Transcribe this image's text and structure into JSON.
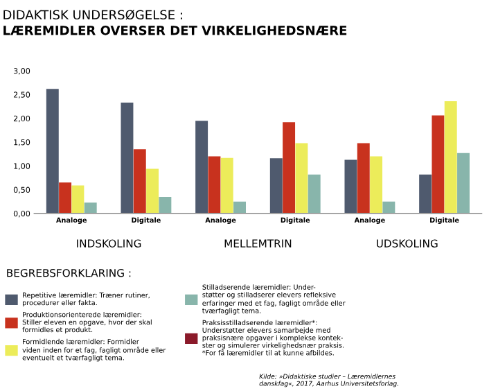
{
  "chart_data": {
    "type": "bar",
    "title": "DIDAKTISK UNDERSØGELSE :",
    "subtitle": "LÆREMIDLER OVERSER DET VIRKELIGHEDSNÆRE",
    "categories": [
      "Analoge",
      "Digitale",
      "Analoge",
      "Digitale",
      "Analoge",
      "Digitale"
    ],
    "series": [
      {
        "name": "Repetitive læremidler: Træner rutiner,\nprocedurer eller fakta.",
        "color": "#4f5a6e",
        "values": [
          2.62,
          2.33,
          1.95,
          1.16,
          1.13,
          0.82
        ]
      },
      {
        "name": "Produktionsorienterede læremidler:\nStiller eleven en opgave, hvor der skal\nformidles et produkt.",
        "color": "#c8321e",
        "values": [
          0.65,
          1.35,
          1.2,
          1.92,
          1.48,
          2.06
        ]
      },
      {
        "name": "Formidlende læremidler: Formidler\nviden inden for et fag, fagligt område eller\neventuelt et tværfagligt tema.",
        "color": "#ecec5a",
        "values": [
          0.59,
          0.94,
          1.17,
          1.48,
          1.2,
          2.36
        ]
      },
      {
        "name": "Stilladserende læremidler: Under-\nstøtter og stilladserer elevers refleksive\nerfaringer med et fag, fagligt område eller\ntværfagligt tema.",
        "color": "#88b5ab",
        "values": [
          0.23,
          0.35,
          0.25,
          0.82,
          0.25,
          1.27
        ]
      },
      {
        "name": "Praksisstilladserende læremidler*:\nUnderstøtter elevers samarbejde med\npraksisnære opgaver i komplekse kontek-\nster og simulerer virkelighedsnær praksis.\n*For få læremidler til at kunne afbildes.",
        "color": "#8b1a2a",
        "values": [
          null,
          null,
          null,
          null,
          null,
          null
        ]
      }
    ],
    "ylim": [
      0,
      3
    ],
    "yticks": [
      {
        "value": 0,
        "label": "0,00"
      },
      {
        "value": 0.5,
        "label": "0,50"
      },
      {
        "value": 1,
        "label": "1,00"
      },
      {
        "value": 1.5,
        "label": "1,50"
      },
      {
        "value": 2,
        "label": "2,00"
      },
      {
        "value": 2.5,
        "label": "2,50"
      },
      {
        "value": 3,
        "label": "3,00"
      }
    ],
    "grid": false,
    "legend": "bottom",
    "legend_title": "BEGREBSFORKLARING :",
    "annotations": [
      "INDSKOLING",
      "MELLEMTRIN",
      "UDSKOLING",
      "Kilde: »Didaktiske studier – Læremidlernes\ndanskfag«, 2017, Aarhus Universitetsforlag."
    ]
  }
}
